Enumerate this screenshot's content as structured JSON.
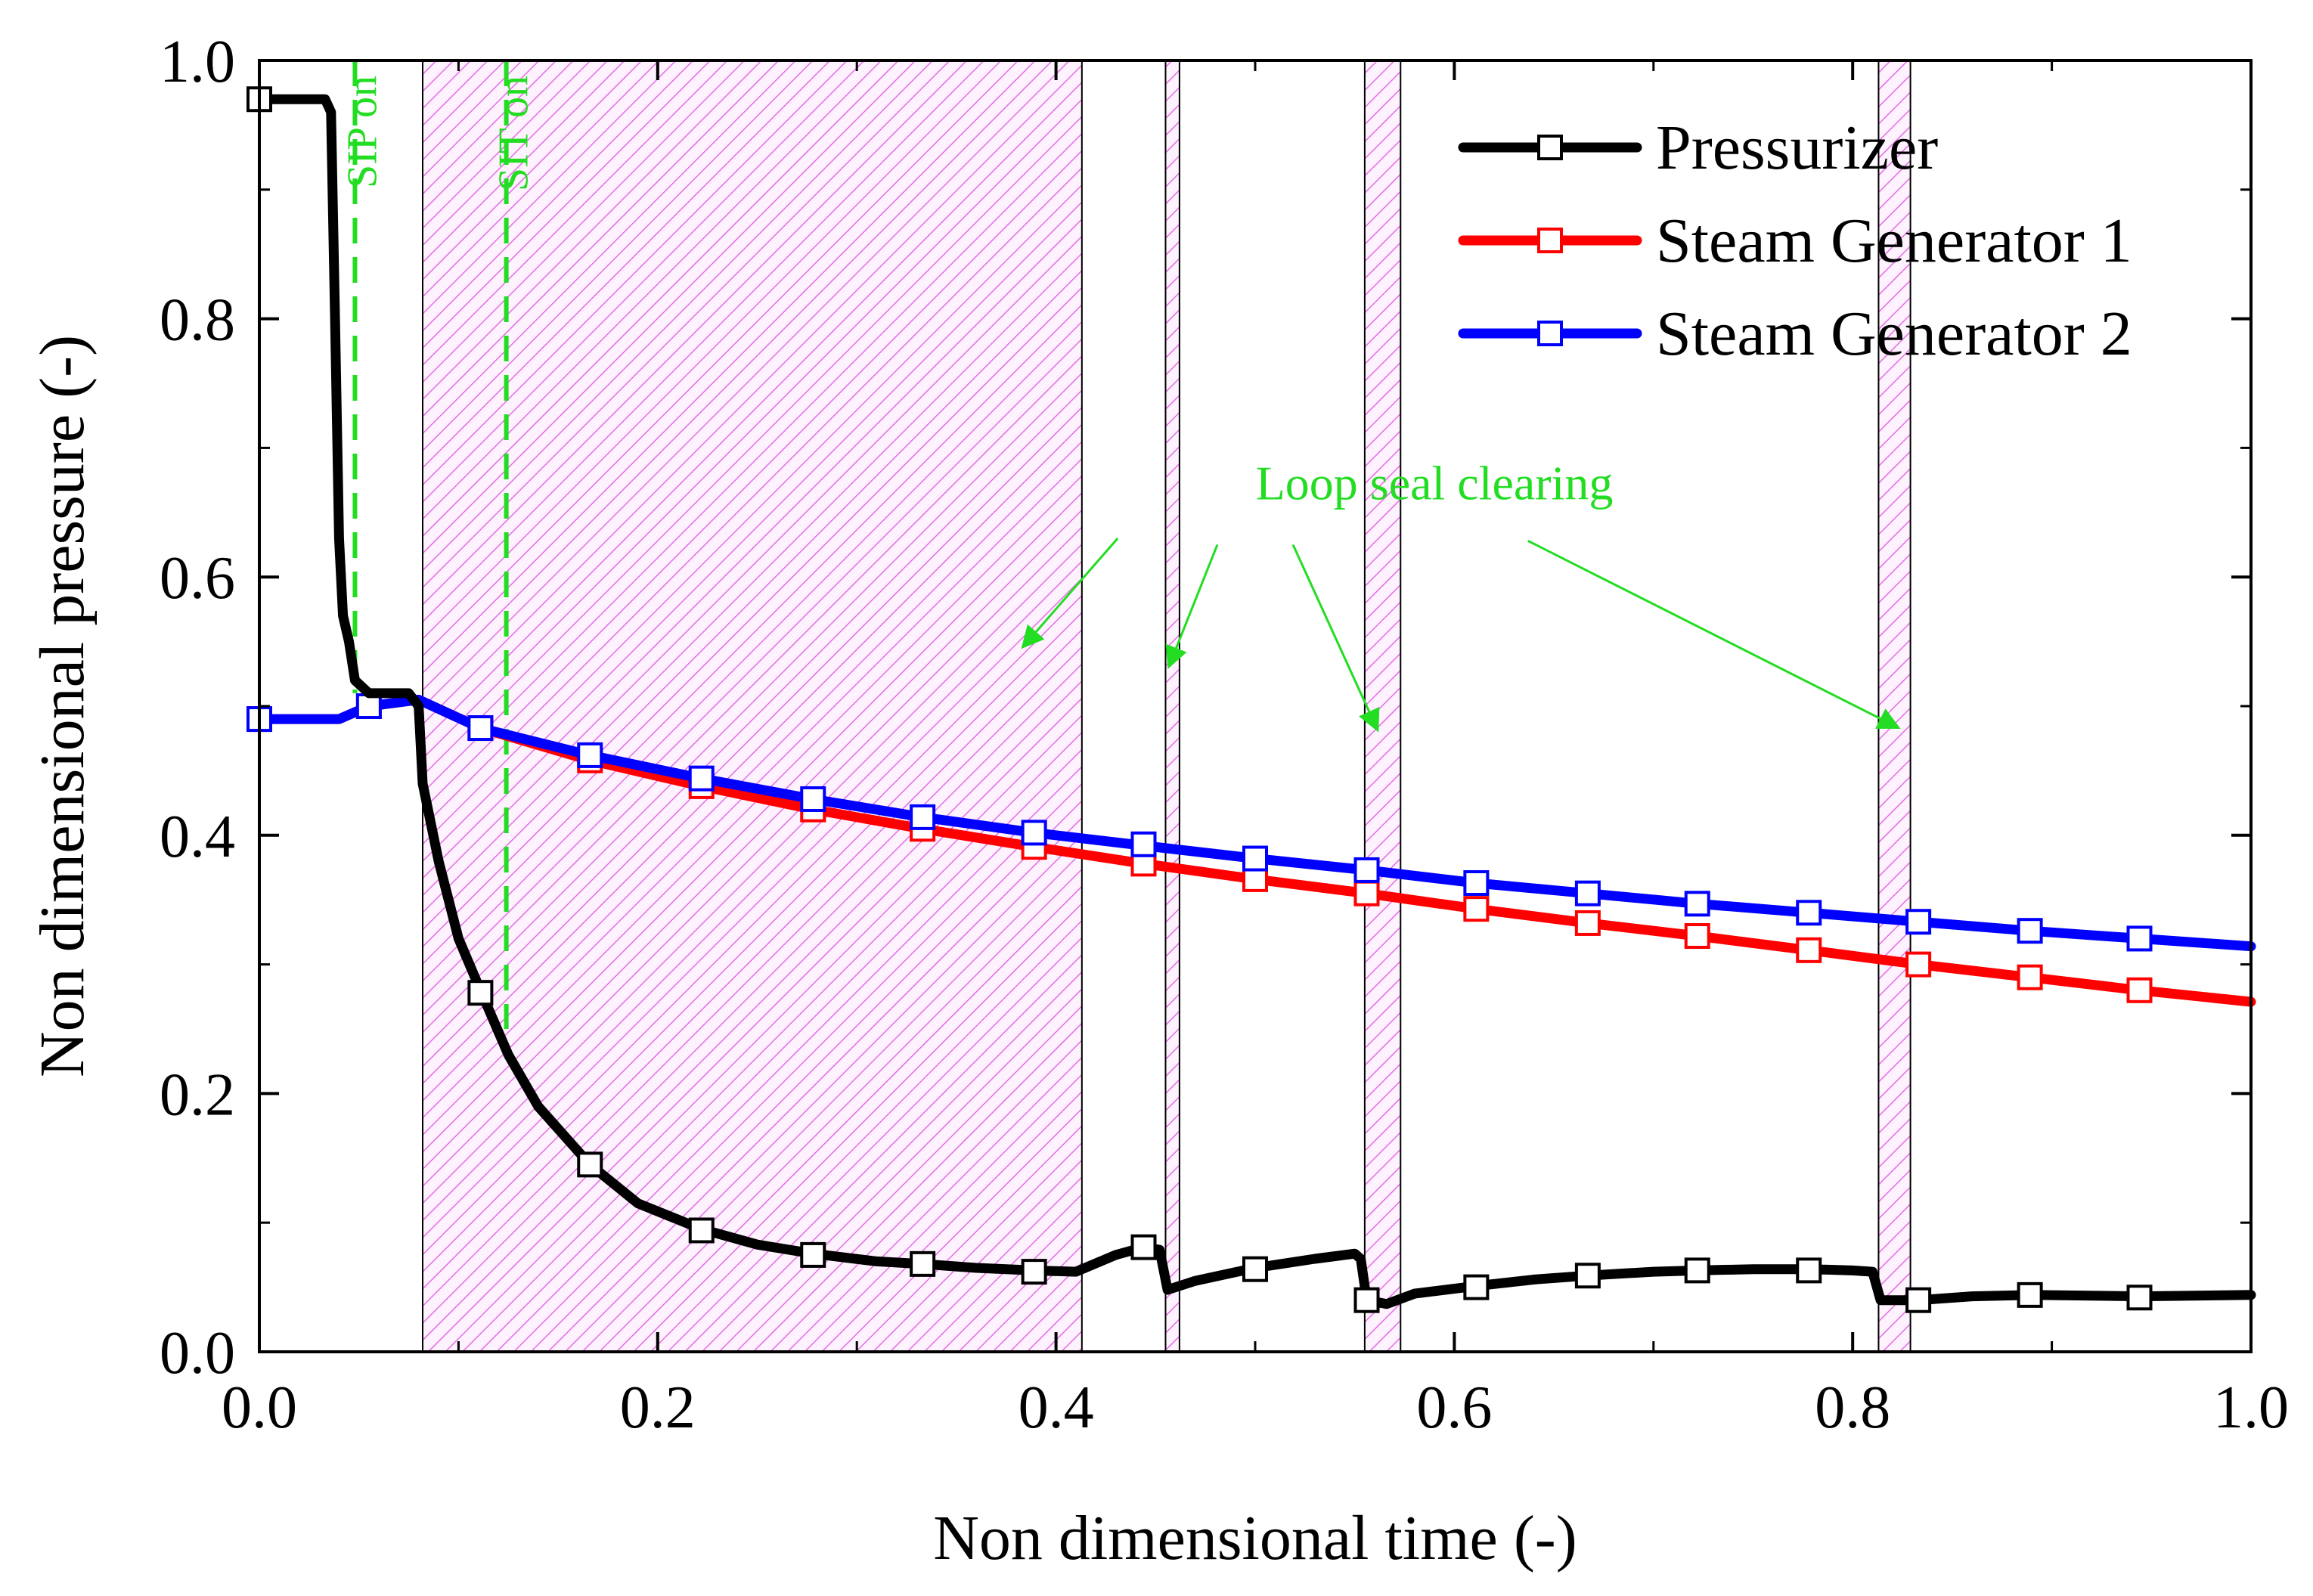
{
  "chart_data": {
    "type": "line",
    "xlabel": "Non dimensional time (-)",
    "ylabel": "Non dimensional pressure (-)",
    "xlim": [
      0.0,
      1.0
    ],
    "ylim": [
      0.0,
      1.0
    ],
    "x_ticks": [
      "0.0",
      "0.2",
      "0.4",
      "0.6",
      "0.8",
      "1.0"
    ],
    "y_ticks": [
      "0.0",
      "0.2",
      "0.4",
      "0.6",
      "0.8",
      "1.0"
    ],
    "x_tick_values": [
      0.0,
      0.2,
      0.4,
      0.6,
      0.8,
      1.0
    ],
    "y_tick_values": [
      0.0,
      0.2,
      0.4,
      0.6,
      0.8,
      1.0
    ],
    "grid": false,
    "legend_position": "top-right",
    "series": [
      {
        "name": "Pressurizer",
        "color": "#000000",
        "marker": "open-square",
        "points": [
          [
            0.0,
            0.97
          ],
          [
            0.033,
            0.97
          ],
          [
            0.036,
            0.96
          ],
          [
            0.038,
            0.8
          ],
          [
            0.04,
            0.63
          ],
          [
            0.042,
            0.57
          ],
          [
            0.045,
            0.55
          ],
          [
            0.048,
            0.52
          ],
          [
            0.055,
            0.51
          ],
          [
            0.075,
            0.51
          ],
          [
            0.08,
            0.5
          ],
          [
            0.082,
            0.44
          ],
          [
            0.09,
            0.38
          ],
          [
            0.1,
            0.32
          ],
          [
            0.111,
            0.28
          ],
          [
            0.125,
            0.23
          ],
          [
            0.14,
            0.19
          ],
          [
            0.166,
            0.145
          ],
          [
            0.19,
            0.115
          ],
          [
            0.222,
            0.095
          ],
          [
            0.25,
            0.083
          ],
          [
            0.278,
            0.076
          ],
          [
            0.31,
            0.07
          ],
          [
            0.333,
            0.068
          ],
          [
            0.36,
            0.065
          ],
          [
            0.389,
            0.063
          ],
          [
            0.41,
            0.062
          ],
          [
            0.43,
            0.075
          ],
          [
            0.444,
            0.081
          ],
          [
            0.452,
            0.079
          ],
          [
            0.456,
            0.048
          ],
          [
            0.47,
            0.055
          ],
          [
            0.5,
            0.065
          ],
          [
            0.53,
            0.072
          ],
          [
            0.55,
            0.076
          ],
          [
            0.553,
            0.072
          ],
          [
            0.556,
            0.04
          ],
          [
            0.566,
            0.037
          ],
          [
            0.58,
            0.045
          ],
          [
            0.611,
            0.051
          ],
          [
            0.64,
            0.056
          ],
          [
            0.667,
            0.059
          ],
          [
            0.7,
            0.062
          ],
          [
            0.722,
            0.063
          ],
          [
            0.75,
            0.064
          ],
          [
            0.778,
            0.064
          ],
          [
            0.8,
            0.063
          ],
          [
            0.81,
            0.062
          ],
          [
            0.814,
            0.04
          ],
          [
            0.833,
            0.04
          ],
          [
            0.86,
            0.043
          ],
          [
            0.889,
            0.044
          ],
          [
            0.944,
            0.043
          ],
          [
            1.0,
            0.044
          ]
        ],
        "markers": [
          [
            0.0,
            0.97
          ],
          [
            0.111,
            0.278
          ],
          [
            0.166,
            0.145
          ],
          [
            0.222,
            0.094
          ],
          [
            0.278,
            0.075
          ],
          [
            0.333,
            0.068
          ],
          [
            0.389,
            0.062
          ],
          [
            0.444,
            0.081
          ],
          [
            0.5,
            0.064
          ],
          [
            0.556,
            0.04
          ],
          [
            0.611,
            0.05
          ],
          [
            0.667,
            0.059
          ],
          [
            0.722,
            0.063
          ],
          [
            0.778,
            0.063
          ],
          [
            0.833,
            0.04
          ],
          [
            0.889,
            0.044
          ],
          [
            0.944,
            0.042
          ]
        ]
      },
      {
        "name": "Steam Generator 1",
        "color": "#ff0000",
        "marker": "open-square",
        "points": [
          [
            0.0,
            0.49
          ],
          [
            0.04,
            0.49
          ],
          [
            0.055,
            0.5
          ],
          [
            0.08,
            0.505
          ],
          [
            0.111,
            0.483
          ],
          [
            0.166,
            0.458
          ],
          [
            0.222,
            0.438
          ],
          [
            0.278,
            0.42
          ],
          [
            0.333,
            0.405
          ],
          [
            0.389,
            0.391
          ],
          [
            0.444,
            0.378
          ],
          [
            0.5,
            0.366
          ],
          [
            0.556,
            0.355
          ],
          [
            0.611,
            0.343
          ],
          [
            0.667,
            0.332
          ],
          [
            0.722,
            0.322
          ],
          [
            0.778,
            0.311
          ],
          [
            0.833,
            0.3
          ],
          [
            0.889,
            0.29
          ],
          [
            0.944,
            0.28
          ],
          [
            1.0,
            0.271
          ]
        ],
        "markers": [
          [
            0.0,
            0.49
          ],
          [
            0.055,
            0.5
          ],
          [
            0.111,
            0.483
          ],
          [
            0.166,
            0.458
          ],
          [
            0.222,
            0.438
          ],
          [
            0.278,
            0.42
          ],
          [
            0.333,
            0.405
          ],
          [
            0.389,
            0.391
          ],
          [
            0.444,
            0.378
          ],
          [
            0.5,
            0.366
          ],
          [
            0.556,
            0.355
          ],
          [
            0.611,
            0.343
          ],
          [
            0.667,
            0.332
          ],
          [
            0.722,
            0.322
          ],
          [
            0.778,
            0.311
          ],
          [
            0.833,
            0.3
          ],
          [
            0.889,
            0.29
          ],
          [
            0.944,
            0.28
          ]
        ]
      },
      {
        "name": "Steam Generator 2",
        "color": "#0000ff",
        "marker": "open-square",
        "points": [
          [
            0.0,
            0.49
          ],
          [
            0.04,
            0.49
          ],
          [
            0.055,
            0.5
          ],
          [
            0.08,
            0.505
          ],
          [
            0.111,
            0.483
          ],
          [
            0.166,
            0.462
          ],
          [
            0.222,
            0.444
          ],
          [
            0.278,
            0.428
          ],
          [
            0.333,
            0.414
          ],
          [
            0.389,
            0.402
          ],
          [
            0.444,
            0.392
          ],
          [
            0.5,
            0.382
          ],
          [
            0.556,
            0.373
          ],
          [
            0.611,
            0.363
          ],
          [
            0.667,
            0.355
          ],
          [
            0.722,
            0.347
          ],
          [
            0.778,
            0.34
          ],
          [
            0.833,
            0.333
          ],
          [
            0.889,
            0.326
          ],
          [
            0.944,
            0.32
          ],
          [
            1.0,
            0.314
          ]
        ],
        "markers": [
          [
            0.0,
            0.49
          ],
          [
            0.055,
            0.5
          ],
          [
            0.111,
            0.483
          ],
          [
            0.166,
            0.462
          ],
          [
            0.222,
            0.444
          ],
          [
            0.278,
            0.428
          ],
          [
            0.333,
            0.414
          ],
          [
            0.389,
            0.402
          ],
          [
            0.444,
            0.393
          ],
          [
            0.5,
            0.382
          ],
          [
            0.556,
            0.373
          ],
          [
            0.611,
            0.363
          ],
          [
            0.667,
            0.355
          ],
          [
            0.722,
            0.347
          ],
          [
            0.778,
            0.34
          ],
          [
            0.833,
            0.333
          ],
          [
            0.889,
            0.326
          ],
          [
            0.944,
            0.32
          ]
        ]
      }
    ],
    "shaded_regions": [
      {
        "x0": 0.082,
        "x1": 0.413
      },
      {
        "x0": 0.455,
        "x1": 0.462
      },
      {
        "x0": 0.555,
        "x1": 0.573
      },
      {
        "x0": 0.813,
        "x1": 0.829
      }
    ],
    "shade_color": "#e66be6",
    "vertical_lines": [
      {
        "x": 0.048,
        "label": "SIP on",
        "color": "#22dd22"
      },
      {
        "x": 0.124,
        "label": "SIT on",
        "color": "#22dd22"
      }
    ],
    "annotation": {
      "text": "Loop seal clearing",
      "color": "#22dd22",
      "text_at": [
        0.59,
        0.66
      ],
      "arrows": [
        {
          "from": [
            0.431,
            0.63
          ],
          "to": [
            0.384,
            0.547
          ]
        },
        {
          "from": [
            0.481,
            0.625
          ],
          "to": [
            0.457,
            0.532
          ]
        },
        {
          "from": [
            0.519,
            0.625
          ],
          "to": [
            0.561,
            0.483
          ]
        },
        {
          "from": [
            0.637,
            0.628
          ],
          "to": [
            0.822,
            0.484
          ]
        }
      ]
    }
  }
}
